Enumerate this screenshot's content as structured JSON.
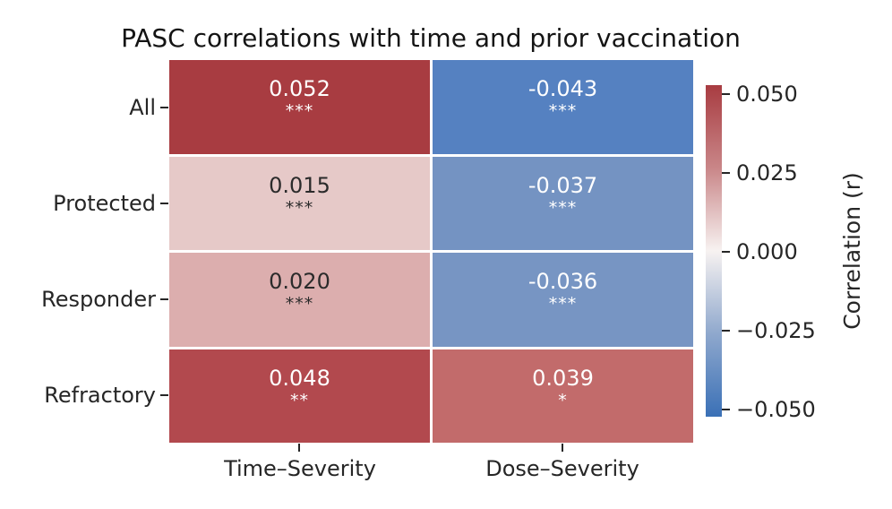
{
  "title": "PASC correlations with time and prior vaccination",
  "chart_data": {
    "type": "heatmap",
    "title": "PASC correlations with time and prior vaccination",
    "rows": [
      "All",
      "Protected",
      "Responder",
      "Refractory"
    ],
    "columns": [
      "Time–Severity",
      "Dose–Severity"
    ],
    "series": [
      {
        "name": "All",
        "values": [
          0.052,
          -0.043
        ]
      },
      {
        "name": "Protected",
        "values": [
          0.015,
          -0.037
        ]
      },
      {
        "name": "Responder",
        "values": [
          0.02,
          -0.036
        ]
      },
      {
        "name": "Refractory",
        "values": [
          0.048,
          0.039
        ]
      }
    ],
    "significance": [
      [
        "***",
        "***"
      ],
      [
        "***",
        "***"
      ],
      [
        "***",
        "***"
      ],
      [
        "**",
        "*"
      ]
    ],
    "cells": [
      {
        "row": "All",
        "col": "Time–Severity",
        "label": "0.052",
        "stars": "***",
        "bg": "#a83c41",
        "fg": "#ffffff"
      },
      {
        "row": "All",
        "col": "Dose–Severity",
        "label": "-0.043",
        "stars": "***",
        "bg": "#5581c1",
        "fg": "#ffffff"
      },
      {
        "row": "Protected",
        "col": "Time–Severity",
        "label": "0.015",
        "stars": "***",
        "bg": "#e6c9c8",
        "fg": "#2b2b2b"
      },
      {
        "row": "Protected",
        "col": "Dose–Severity",
        "label": "-0.037",
        "stars": "***",
        "bg": "#7493c2",
        "fg": "#ffffff"
      },
      {
        "row": "Responder",
        "col": "Time–Severity",
        "label": "0.020",
        "stars": "***",
        "bg": "#dcaeae",
        "fg": "#2b2b2b"
      },
      {
        "row": "Responder",
        "col": "Dose–Severity",
        "label": "-0.036",
        "stars": "***",
        "bg": "#7795c3",
        "fg": "#ffffff"
      },
      {
        "row": "Refractory",
        "col": "Time–Severity",
        "label": "0.048",
        "stars": "**",
        "bg": "#b2494e",
        "fg": "#ffffff"
      },
      {
        "row": "Refractory",
        "col": "Dose–Severity",
        "label": "0.039",
        "stars": "*",
        "bg": "#c26b6b",
        "fg": "#ffffff"
      }
    ],
    "colorbar": {
      "label": "Correlation (r)",
      "vmin": -0.05,
      "vmax": 0.05,
      "ticks": [
        "0.050",
        "0.025",
        "0.000",
        "−0.025",
        "−0.050"
      ],
      "gradient": [
        {
          "color": "#a83c41",
          "pos": 0
        },
        {
          "color": "#c98688",
          "pos": 25
        },
        {
          "color": "#f7f2f1",
          "pos": 50
        },
        {
          "color": "#8fa8cd",
          "pos": 75
        },
        {
          "color": "#3a70b6",
          "pos": 100
        }
      ]
    },
    "legend_position": "right-colorbar",
    "grid": false
  }
}
